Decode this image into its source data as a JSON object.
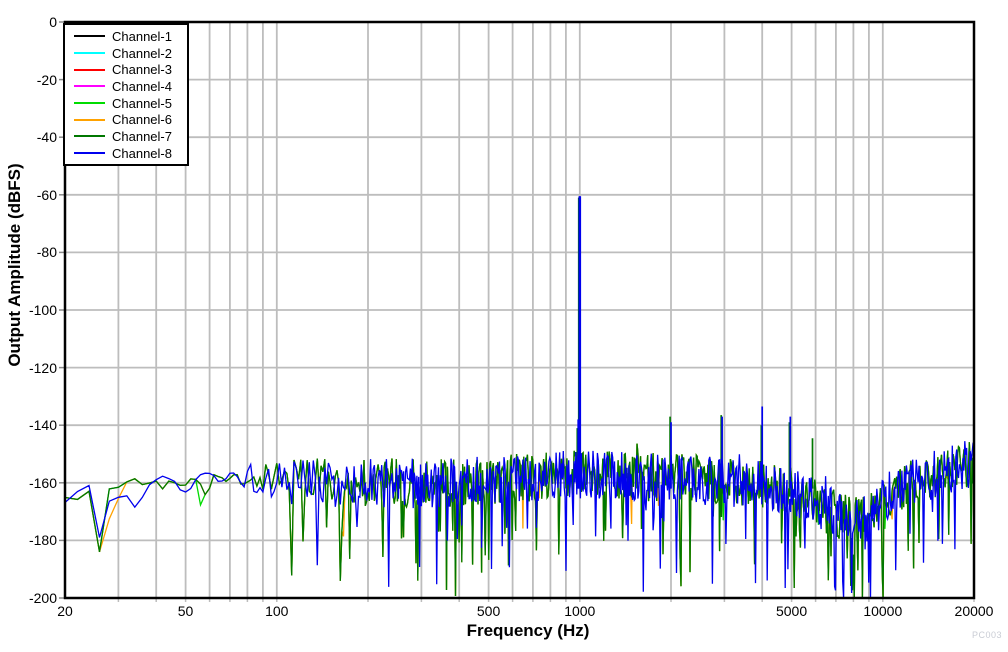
{
  "figure": {
    "watermark": "PC003",
    "background_color": "#ffffff",
    "grid_color": "#bdbdbd",
    "frame_color": "#000000"
  },
  "chart_data": {
    "type": "line",
    "title": "",
    "xlabel": "Frequency (Hz)",
    "ylabel": "Output Amplitude (dBFS)",
    "x_scale": "log",
    "xlim": [
      20,
      20000
    ],
    "ylim": [
      -200,
      0
    ],
    "grid": true,
    "legend_position": "top-left inside plot",
    "x_ticks": [
      {
        "value": 20,
        "label": "20"
      },
      {
        "value": 50,
        "label": "50"
      },
      {
        "value": 100,
        "label": "100"
      },
      {
        "value": 500,
        "label": "500"
      },
      {
        "value": 1000,
        "label": "1000"
      },
      {
        "value": 5000,
        "label": "5000"
      },
      {
        "value": 10000,
        "label": "10000"
      },
      {
        "value": 20000,
        "label": "20000"
      }
    ],
    "y_ticks": [
      {
        "value": 0,
        "label": "0"
      },
      {
        "value": -20,
        "label": "-20"
      },
      {
        "value": -40,
        "label": "-40"
      },
      {
        "value": -60,
        "label": "-60"
      },
      {
        "value": -80,
        "label": "-80"
      },
      {
        "value": -100,
        "label": "-100"
      },
      {
        "value": -120,
        "label": "-120"
      },
      {
        "value": -140,
        "label": "-140"
      },
      {
        "value": -160,
        "label": "-160"
      },
      {
        "value": -180,
        "label": "-180"
      },
      {
        "value": -200,
        "label": "-200"
      }
    ],
    "series": [
      {
        "name": "Channel-1",
        "color": "#000000",
        "plot_visibility": "hidden (overplotted by later channels)"
      },
      {
        "name": "Channel-2",
        "color": "#00FFFF",
        "plot_visibility": "hidden (overplotted by later channels)"
      },
      {
        "name": "Channel-3",
        "color": "#FF0000",
        "plot_visibility": "hidden (overplotted by later channels)"
      },
      {
        "name": "Channel-4",
        "color": "#FF00FF",
        "plot_visibility": "hidden (overplotted by later channels)"
      },
      {
        "name": "Channel-5",
        "color": "#00DC00",
        "plot_visibility": "occasional tips at bottom of noise dips"
      },
      {
        "name": "Channel-6",
        "color": "#FFA200",
        "plot_visibility": "occasional tips at bottom of noise dips"
      },
      {
        "name": "Channel-7",
        "color": "#007700",
        "plot_visibility": "visible noise trace"
      },
      {
        "name": "Channel-8",
        "color": "#0000EE",
        "plot_visibility": "visible noise trace (topmost)"
      }
    ],
    "signal_peak": {
      "frequency_hz": 1000,
      "level_dbfs": -60.5
    },
    "spurs": [
      {
        "frequency_hz": 1000,
        "ch7_dbfs": -61,
        "ch8_dbfs": -60.5,
        "main_tone": true
      },
      {
        "frequency_hz": 988,
        "ch7_dbfs": -141,
        "ch8_dbfs": -138,
        "main_tone": false
      },
      {
        "frequency_hz": 2000,
        "ch7_dbfs": -137,
        "ch8_dbfs": -139,
        "main_tone": false
      },
      {
        "frequency_hz": 2950,
        "ch7_dbfs": -136.5,
        "ch8_dbfs": -137,
        "main_tone": false
      },
      {
        "frequency_hz": 4000,
        "ch7_dbfs": -140,
        "ch8_dbfs": -133.5,
        "main_tone": false
      },
      {
        "frequency_hz": 4950,
        "ch7_dbfs": -139,
        "ch8_dbfs": -137,
        "main_tone": false
      },
      {
        "frequency_hz": 5900,
        "ch7_dbfs": -144.5,
        "ch8_dbfs": null,
        "main_tone": false
      }
    ],
    "notch": {
      "frequency_hz": 26,
      "ch7_dbfs": -184,
      "ch8_dbfs": -179
    },
    "noise_floor_mean_dbfs": [
      [
        20,
        -160
      ],
      [
        26,
        -164
      ],
      [
        30,
        -162
      ],
      [
        40,
        -161
      ],
      [
        50,
        -160
      ],
      [
        70,
        -160
      ],
      [
        100,
        -159
      ],
      [
        150,
        -160
      ],
      [
        200,
        -160
      ],
      [
        300,
        -160
      ],
      [
        400,
        -160
      ],
      [
        500,
        -159
      ],
      [
        700,
        -158
      ],
      [
        1000,
        -157
      ],
      [
        1500,
        -158
      ],
      [
        2000,
        -158
      ],
      [
        2500,
        -159
      ],
      [
        3000,
        -160
      ],
      [
        4000,
        -161
      ],
      [
        5000,
        -163
      ],
      [
        6000,
        -167
      ],
      [
        7000,
        -171
      ],
      [
        8000,
        -173
      ],
      [
        9000,
        -171
      ],
      [
        10000,
        -166
      ],
      [
        12000,
        -161
      ],
      [
        15000,
        -157
      ],
      [
        20000,
        -153
      ]
    ],
    "noise_band_note": "noise floor spans roughly -148 to -200 dBFS, with a dip near 8 kHz"
  }
}
